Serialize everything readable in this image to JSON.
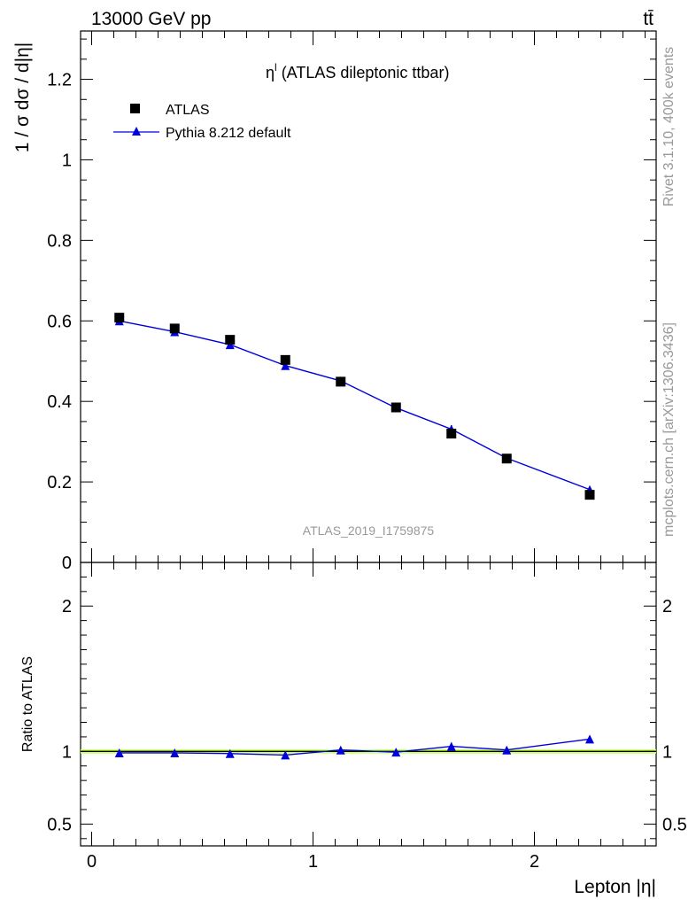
{
  "header": {
    "energy_label": "13000 GeV pp",
    "process_label": "tt̄"
  },
  "side_labels": {
    "rivet": "Rivet 3.1.10,  400k events",
    "source": "mcplots.cern.ch [arXiv:1306.3436]"
  },
  "chart_data": [
    {
      "type": "scatter",
      "panel": "main",
      "title": "η (ATLAS dileptonic ttbar)",
      "title_superscript": "l",
      "ylabel": "1 / σ  dσ / d|η|",
      "analysis_label": "ATLAS_2019_I1759875",
      "xlim": [
        -0.05,
        2.55
      ],
      "ylim": [
        0,
        1.32
      ],
      "grid": false,
      "legend_position": "top-left",
      "x": [
        0.125,
        0.375,
        0.625,
        0.875,
        1.125,
        1.375,
        1.625,
        1.875,
        2.25
      ],
      "yticks": [
        {
          "value": 0,
          "label": "0"
        },
        {
          "value": 0.2,
          "label": "0.2"
        },
        {
          "value": 0.4,
          "label": "0.4"
        },
        {
          "value": 0.6,
          "label": "0.6"
        },
        {
          "value": 0.8,
          "label": "0.8"
        },
        {
          "value": 1.0,
          "label": "1"
        },
        {
          "value": 1.2,
          "label": "1.2"
        }
      ],
      "series": [
        {
          "name": "ATLAS",
          "marker": "square",
          "color": "#000000",
          "values": [
            0.608,
            0.581,
            0.553,
            0.503,
            0.449,
            0.385,
            0.32,
            0.258,
            0.168
          ],
          "errors": [
            0.006,
            0.006,
            0.006,
            0.006,
            0.006,
            0.006,
            0.006,
            0.005,
            0.005
          ]
        },
        {
          "name": "Pythia 8.212 default",
          "marker": "triangle",
          "color": "#0000dd",
          "values": [
            0.6,
            0.573,
            0.541,
            0.489,
            0.451,
            0.384,
            0.331,
            0.259,
            0.181
          ],
          "errors": [
            0.005,
            0.005,
            0.005,
            0.006,
            0.01,
            0.006,
            0.01,
            0.006,
            0.005
          ]
        }
      ]
    },
    {
      "type": "scatter",
      "panel": "ratio",
      "ylabel": "Ratio to ATLAS",
      "xlabel": "Lepton |η|",
      "xlim": [
        -0.05,
        2.55
      ],
      "ylim": [
        0.35,
        2.3
      ],
      "grid": false,
      "band_color": "#ccff66",
      "x": [
        0.125,
        0.375,
        0.625,
        0.875,
        1.125,
        1.375,
        1.625,
        1.875,
        2.25
      ],
      "xticks": [
        {
          "value": 0,
          "label": "0"
        },
        {
          "value": 1,
          "label": "1"
        },
        {
          "value": 2,
          "label": "2"
        }
      ],
      "yticks": [
        {
          "value": 0.5,
          "label": "0.5"
        },
        {
          "value": 1,
          "label": "1"
        },
        {
          "value": 2,
          "label": "2"
        }
      ],
      "series": [
        {
          "name": "Pythia 8.212 default",
          "color": "#0000dd",
          "values": [
            0.99,
            0.99,
            0.985,
            0.975,
            1.01,
            0.995,
            1.035,
            1.01,
            1.085
          ],
          "errors": [
            0.008,
            0.008,
            0.01,
            0.012,
            0.02,
            0.018,
            0.025,
            0.022,
            0.02
          ]
        }
      ],
      "reference_band": [
        0.985,
        1.015
      ]
    }
  ]
}
